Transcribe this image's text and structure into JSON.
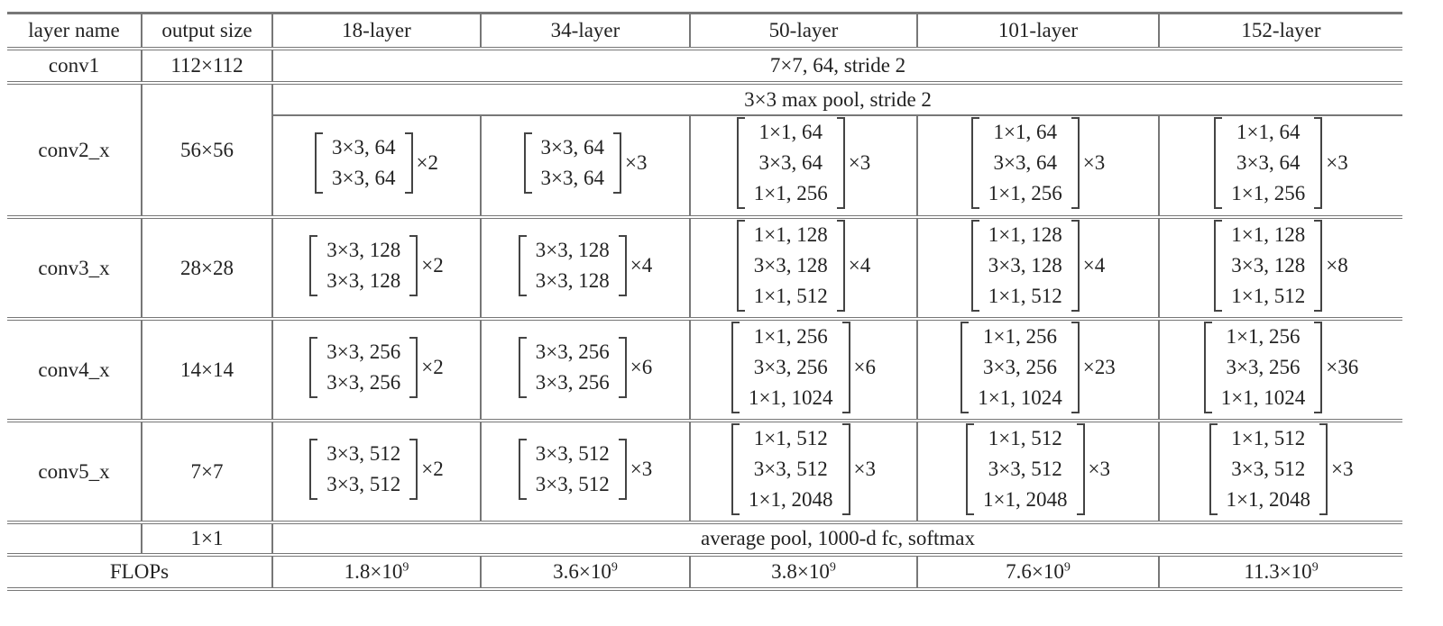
{
  "headers": [
    "layer name",
    "output size",
    "18-layer",
    "34-layer",
    "50-layer",
    "101-layer",
    "152-layer"
  ],
  "conv1": {
    "name": "conv1",
    "size": "112×112",
    "spec": "7×7, 64, stride 2"
  },
  "conv2": {
    "name": "conv2_x",
    "size": "56×56",
    "pool": "3×3 max pool, stride 2",
    "blocks": [
      {
        "lines": [
          "3×3, 64",
          "3×3, 64"
        ],
        "mult": "×2"
      },
      {
        "lines": [
          "3×3, 64",
          "3×3, 64"
        ],
        "mult": "×3"
      },
      {
        "lines": [
          "1×1, 64",
          "3×3, 64",
          "1×1, 256"
        ],
        "mult": "×3"
      },
      {
        "lines": [
          "1×1, 64",
          "3×3, 64",
          "1×1, 256"
        ],
        "mult": "×3"
      },
      {
        "lines": [
          "1×1, 64",
          "3×3, 64",
          "1×1, 256"
        ],
        "mult": "×3"
      }
    ]
  },
  "conv3": {
    "name": "conv3_x",
    "size": "28×28",
    "blocks": [
      {
        "lines": [
          "3×3, 128",
          "3×3, 128"
        ],
        "mult": "×2"
      },
      {
        "lines": [
          "3×3, 128",
          "3×3, 128"
        ],
        "mult": "×4"
      },
      {
        "lines": [
          "1×1, 128",
          "3×3, 128",
          "1×1, 512"
        ],
        "mult": "×4"
      },
      {
        "lines": [
          "1×1, 128",
          "3×3, 128",
          "1×1, 512"
        ],
        "mult": "×4"
      },
      {
        "lines": [
          "1×1, 128",
          "3×3, 128",
          "1×1, 512"
        ],
        "mult": "×8"
      }
    ]
  },
  "conv4": {
    "name": "conv4_x",
    "size": "14×14",
    "blocks": [
      {
        "lines": [
          "3×3, 256",
          "3×3, 256"
        ],
        "mult": "×2"
      },
      {
        "lines": [
          "3×3, 256",
          "3×3, 256"
        ],
        "mult": "×6"
      },
      {
        "lines": [
          "1×1, 256",
          "3×3, 256",
          "1×1, 1024"
        ],
        "mult": "×6"
      },
      {
        "lines": [
          "1×1, 256",
          "3×3, 256",
          "1×1, 1024"
        ],
        "mult": "×23"
      },
      {
        "lines": [
          "1×1, 256",
          "3×3, 256",
          "1×1, 1024"
        ],
        "mult": "×36"
      }
    ]
  },
  "conv5": {
    "name": "conv5_x",
    "size": "7×7",
    "blocks": [
      {
        "lines": [
          "3×3, 512",
          "3×3, 512"
        ],
        "mult": "×2"
      },
      {
        "lines": [
          "3×3, 512",
          "3×3, 512"
        ],
        "mult": "×3"
      },
      {
        "lines": [
          "1×1, 512",
          "3×3, 512",
          "1×1, 2048"
        ],
        "mult": "×3"
      },
      {
        "lines": [
          "1×1, 512",
          "3×3, 512",
          "1×1, 2048"
        ],
        "mult": "×3"
      },
      {
        "lines": [
          "1×1, 512",
          "3×3, 512",
          "1×1, 2048"
        ],
        "mult": "×3"
      }
    ]
  },
  "final": {
    "name": "",
    "size": "1×1",
    "spec": "average pool, 1000-d fc, softmax"
  },
  "flops": {
    "label": "FLOPs",
    "values": [
      {
        "base": "1.8×10",
        "exp": "9"
      },
      {
        "base": "3.6×10",
        "exp": "9"
      },
      {
        "base": "3.8×10",
        "exp": "9"
      },
      {
        "base": "7.6×10",
        "exp": "9"
      },
      {
        "base": "11.3×10",
        "exp": "9"
      }
    ]
  }
}
